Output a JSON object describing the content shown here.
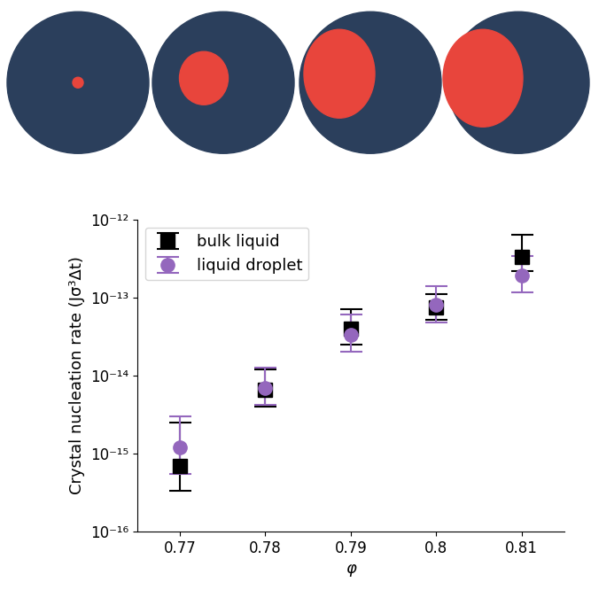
{
  "chart_data": {
    "type": "scatter",
    "x_label": "φ",
    "y_label": "Crystal nucleation rate (Jσ³Δt)",
    "log": "y",
    "legend": "upper left",
    "grid": false,
    "xlim": [
      0.765,
      0.815
    ],
    "xticks": [
      0.77,
      0.78,
      0.79,
      0.8,
      0.81
    ],
    "ylim": [
      1e-16,
      1e-12
    ],
    "yticks": [
      {
        "value": 1e-16,
        "label": "10⁻¹⁶"
      },
      {
        "value": 1e-15,
        "label": "10⁻¹⁵"
      },
      {
        "value": 1e-14,
        "label": "10⁻¹⁴"
      },
      {
        "value": 1e-13,
        "label": "10⁻¹³"
      },
      {
        "value": 1e-12,
        "label": "10⁻¹²"
      }
    ],
    "x": [
      0.77,
      0.78,
      0.79,
      0.8,
      0.81
    ],
    "series": [
      {
        "name": "bulk liquid",
        "color": "#000000",
        "marker": "square",
        "values": [
          7e-16,
          6.5e-15,
          4e-14,
          7.5e-14,
          3.3e-13
        ],
        "error_lower": [
          3.3e-16,
          4e-15,
          2.5e-14,
          5.2e-14,
          2.2e-13
        ],
        "error_upper": [
          2.5e-15,
          1.2e-14,
          7e-14,
          1.1e-13,
          6.3e-13
        ]
      },
      {
        "name": "liquid droplet",
        "color": "#9467bd",
        "marker": "circle",
        "values": [
          1.2e-15,
          7e-15,
          3.3e-14,
          8e-14,
          1.9e-13
        ],
        "error_lower": [
          5.5e-16,
          4.2e-15,
          2e-14,
          4.8e-14,
          1.15e-13
        ],
        "error_upper": [
          3e-15,
          1.25e-14,
          6.1e-14,
          1.4e-13,
          3.4e-13
        ]
      }
    ]
  }
}
